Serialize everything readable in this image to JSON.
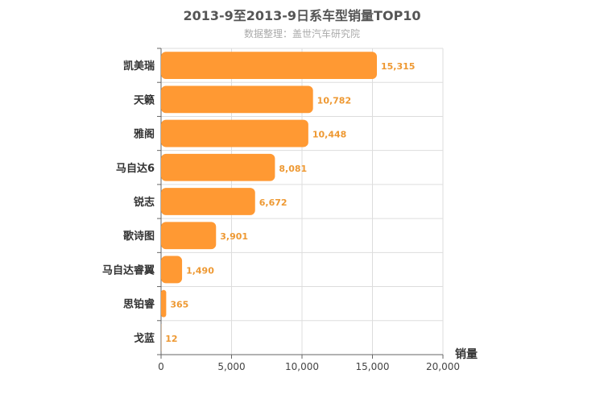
{
  "chart_data": {
    "type": "bar",
    "orientation": "horizontal",
    "title": "2013-9至2013-9日系车型销量TOP10",
    "subtitle": "数据整理：盖世汽车研究院",
    "xlabel": "销量",
    "ylabel": "",
    "categories": [
      "凯美瑞",
      "天籁",
      "雅阁",
      "马自达6",
      "锐志",
      "歌诗图",
      "马自达睿翼",
      "思铂睿",
      "戈蓝"
    ],
    "values": [
      15315,
      10782,
      10448,
      8081,
      6672,
      3901,
      1490,
      365,
      12
    ],
    "value_labels": [
      "15,315",
      "10,782",
      "10,448",
      "8,081",
      "6,672",
      "3,901",
      "1,490",
      "365",
      "12"
    ],
    "xlim": [
      0,
      20000
    ],
    "x_ticks": [
      0,
      5000,
      10000,
      15000,
      20000
    ],
    "x_tick_labels": [
      "0",
      "5,000",
      "10,000",
      "15,000",
      "20,000"
    ],
    "grid": true,
    "legend": "none",
    "bar_color": "#FF9933",
    "label_color": "#EE9933"
  }
}
